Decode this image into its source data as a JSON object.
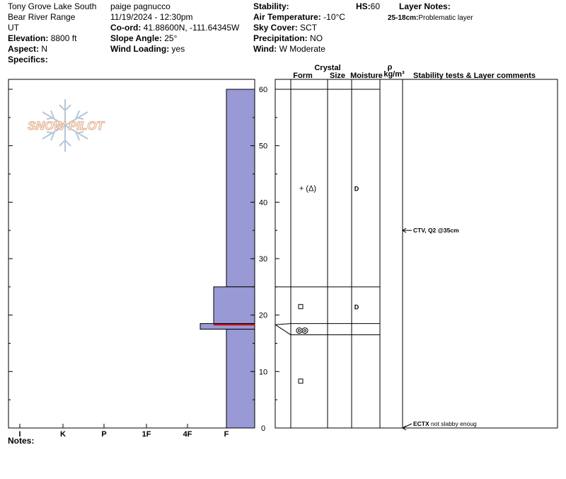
{
  "header": {
    "location": "Tony Grove Lake South",
    "range": "Bear River Range",
    "state": "UT",
    "elevation_label": "Elevation:",
    "elevation": "8800 ft",
    "aspect_label": "Aspect:",
    "aspect": "N",
    "specifics_label": "Specifics:",
    "observer": "paige pagnucco",
    "datetime": "11/19/2024 - 12:30pm",
    "coord_label": "Co-ord:",
    "coord": "41.88600N, -111.64345W",
    "slope_label": "Slope Angle:",
    "slope": "25°",
    "wind_loading_label": "Wind Loading:",
    "wind_loading": "yes",
    "stability_label": "Stability:",
    "air_temp_label": "Air Temperature:",
    "air_temp": "-10°C",
    "sky_label": "Sky Cover:",
    "sky": "SCT",
    "precip_label": "Precipitation:",
    "precip": "NO",
    "wind_label": "Wind:",
    "wind": "W Moderate",
    "hs_label": "HS:",
    "hs": "60",
    "layer_notes_label": "Layer Notes:",
    "layer_note_depth": "25-18cm:",
    "layer_note_text": "Problematic layer"
  },
  "notes_label": "Notes:",
  "logo_text": "SNOW PILOT",
  "columns": {
    "crystal": "Crystal",
    "form": "Form",
    "size": "Size",
    "moisture": "Moisture",
    "rho": "ρ",
    "density_unit": "kg/m³",
    "stability": "Stability tests & Layer comments"
  },
  "colors": {
    "hardness_fill": "#9999d6",
    "weak_layer_line": "#cc0000"
  },
  "chart_data": {
    "type": "snow-profile",
    "hardness_axis": [
      "I",
      "K",
      "P",
      "1F",
      "4F",
      "F"
    ],
    "height_axis": {
      "min": 0,
      "max": 60,
      "ticks": [
        0,
        10,
        20,
        30,
        40,
        50,
        60
      ]
    },
    "layers": [
      {
        "top": 60,
        "bottom": 25,
        "hardness": "F"
      },
      {
        "top": 25,
        "bottom": 18.5,
        "hardness": "4F-1"
      },
      {
        "top": 18.5,
        "bottom": 17.5,
        "hardness": "4F"
      },
      {
        "top": 17.5,
        "bottom": 0,
        "hardness": "F"
      }
    ],
    "weak_layer_cm": 18.3,
    "table_boundaries": [
      60,
      25,
      18.5,
      16.5,
      0
    ],
    "grain_rows": [
      {
        "height": 42.5,
        "form_icon": "plus-paren-icon",
        "moisture": "D"
      },
      {
        "height": 21.5,
        "form_icon": "square-icon",
        "moisture": "D"
      },
      {
        "height": 17.5,
        "form_icon": "double-circle-icon",
        "moisture": ""
      },
      {
        "height": 8.3,
        "form_icon": "square-icon",
        "moisture": ""
      }
    ],
    "stability_tests": [
      {
        "height": 35,
        "code": "CTV, Q2 @35cm",
        "comment": ""
      },
      {
        "height": 0,
        "code": "ECTX",
        "comment": "not slabby enoug"
      }
    ]
  }
}
